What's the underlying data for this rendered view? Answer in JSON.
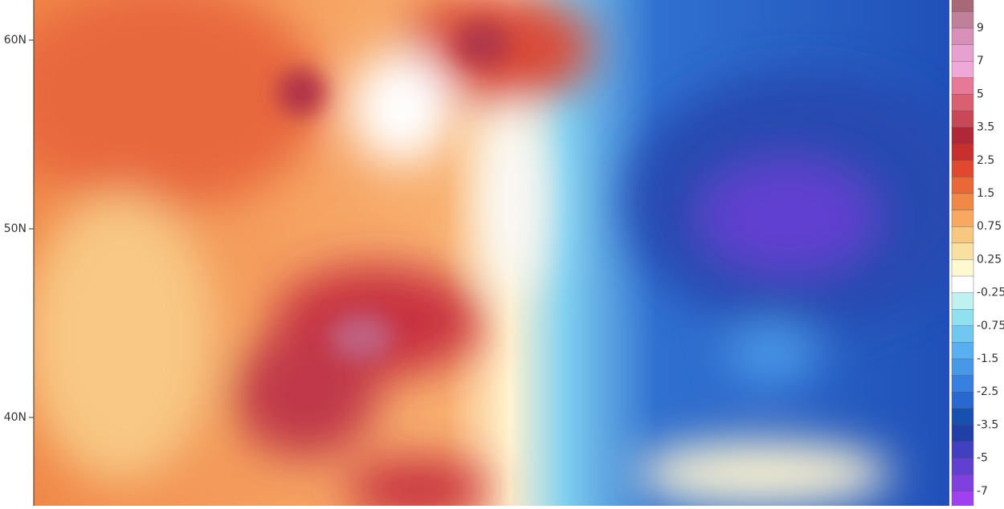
{
  "lat_labels": [
    "60N",
    "50N",
    "40N"
  ],
  "colorbar": {
    "labels": [
      "9",
      "7",
      "5",
      "3.5",
      "2.5",
      "1.5",
      "0.75",
      "0.25",
      "-0.25",
      "-0.75",
      "-1.5",
      "-2.5",
      "-3.5",
      "-5",
      "-7"
    ]
  }
}
